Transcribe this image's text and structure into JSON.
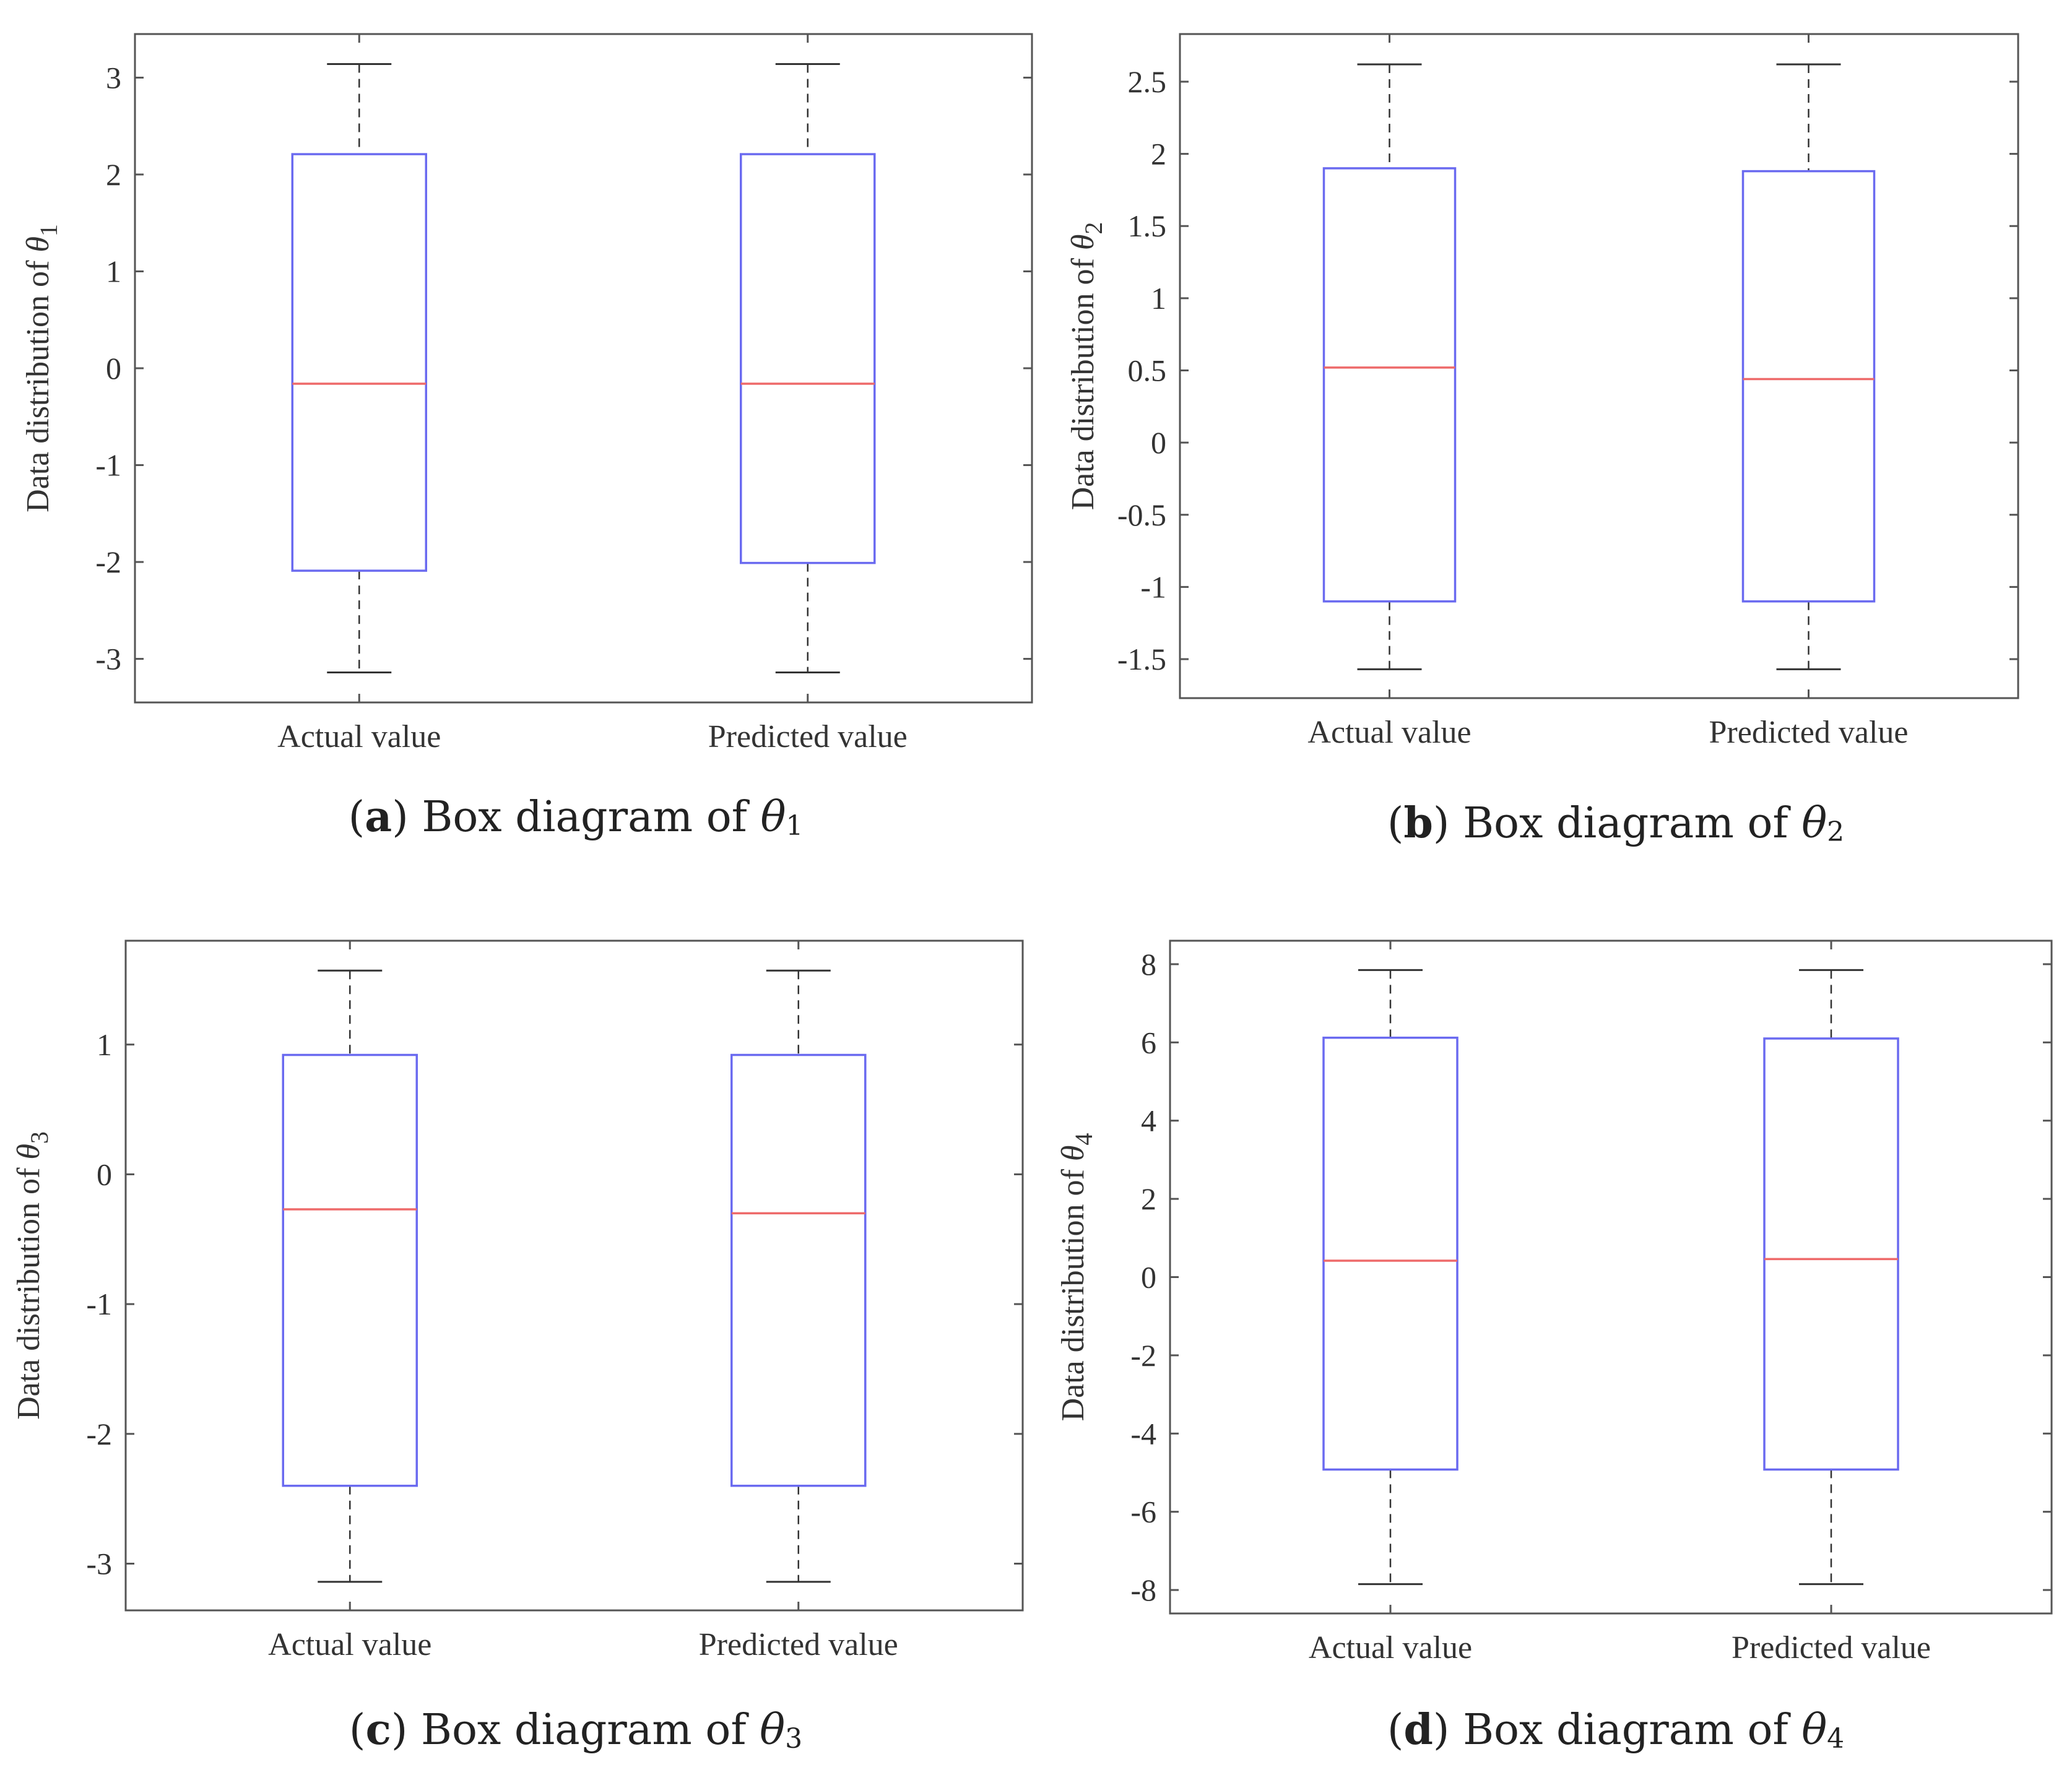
{
  "chart_data": [
    {
      "type": "box",
      "panel_label": "a",
      "caption_text": "Box diagram of",
      "caption_symbol": "θ",
      "caption_subscript": "1",
      "ylabel": "Data distribution of",
      "ylabel_symbol": "θ",
      "ylabel_subscript": "1",
      "ylim": [
        -3.45,
        3.45
      ],
      "yticks": [
        3,
        2,
        1,
        0,
        -1,
        -2,
        -3
      ],
      "ytick_labels": [
        "3",
        "2",
        "1",
        "0",
        "-1",
        "-2",
        "-3"
      ],
      "categories": [
        "Actual value",
        "Predicted value"
      ],
      "boxes": [
        {
          "name": "Actual value",
          "whisker_low": -3.14,
          "q1": -2.09,
          "median": -0.16,
          "q3": 2.21,
          "whisker_high": 3.14
        },
        {
          "name": "Predicted value",
          "whisker_low": -3.14,
          "q1": -2.01,
          "median": -0.16,
          "q3": 2.21,
          "whisker_high": 3.14
        }
      ]
    },
    {
      "type": "box",
      "panel_label": "b",
      "caption_text": "Box diagram of",
      "caption_symbol": "θ",
      "caption_subscript": "2",
      "ylabel": "Data distribution of",
      "ylabel_symbol": "θ",
      "ylabel_subscript": "2",
      "ylim": [
        -1.77,
        2.83
      ],
      "yticks": [
        2.5,
        2,
        1.5,
        1,
        0.5,
        0,
        -0.5,
        -1,
        -1.5
      ],
      "ytick_labels": [
        "2.5",
        "2",
        "1.5",
        "1",
        "0.5",
        "0",
        "-0.5",
        "-1",
        "-1.5"
      ],
      "categories": [
        "Actual value",
        "Predicted value"
      ],
      "boxes": [
        {
          "name": "Actual value",
          "whisker_low": -1.57,
          "q1": -1.1,
          "median": 0.52,
          "q3": 1.9,
          "whisker_high": 2.62
        },
        {
          "name": "Predicted value",
          "whisker_low": -1.57,
          "q1": -1.1,
          "median": 0.44,
          "q3": 1.88,
          "whisker_high": 2.62
        }
      ]
    },
    {
      "type": "box",
      "panel_label": "c",
      "caption_text": "Box diagram of",
      "caption_symbol": "θ",
      "caption_subscript": "3",
      "ylabel": "Data distribution of",
      "ylabel_symbol": "θ",
      "ylabel_subscript": "3",
      "ylim": [
        -3.36,
        1.8
      ],
      "yticks": [
        1,
        0,
        -1,
        -2,
        -3
      ],
      "ytick_labels": [
        "1",
        "0",
        "-1",
        "-2",
        "-3"
      ],
      "categories": [
        "Actual value",
        "Predicted value"
      ],
      "boxes": [
        {
          "name": "Actual value",
          "whisker_low": -3.14,
          "q1": -2.4,
          "median": -0.27,
          "q3": 0.92,
          "whisker_high": 1.57
        },
        {
          "name": "Predicted value",
          "whisker_low": -3.14,
          "q1": -2.4,
          "median": -0.3,
          "q3": 0.92,
          "whisker_high": 1.57
        }
      ]
    },
    {
      "type": "box",
      "panel_label": "d",
      "caption_text": "Box diagram of",
      "caption_symbol": "θ",
      "caption_subscript": "4",
      "ylabel": "Data distribution of",
      "ylabel_symbol": "θ",
      "ylabel_subscript": "4",
      "ylim": [
        -8.6,
        8.6
      ],
      "yticks": [
        8,
        6,
        4,
        2,
        0,
        -2,
        -4,
        -6,
        -8
      ],
      "ytick_labels": [
        "8",
        "6",
        "4",
        "2",
        "0",
        "-2",
        "-4",
        "-6",
        "-8"
      ],
      "categories": [
        "Actual value",
        "Predicted value"
      ],
      "boxes": [
        {
          "name": "Actual value",
          "whisker_low": -7.85,
          "q1": -4.92,
          "median": 0.42,
          "q3": 6.12,
          "whisker_high": 7.85
        },
        {
          "name": "Predicted value",
          "whisker_low": -7.85,
          "q1": -4.92,
          "median": 0.46,
          "q3": 6.1,
          "whisker_high": 7.85
        }
      ]
    }
  ],
  "colors": {
    "box": "#6a6af0",
    "median": "#ee6a6a",
    "whisker": "#333333",
    "axis": "#555555",
    "text": "#333333"
  }
}
